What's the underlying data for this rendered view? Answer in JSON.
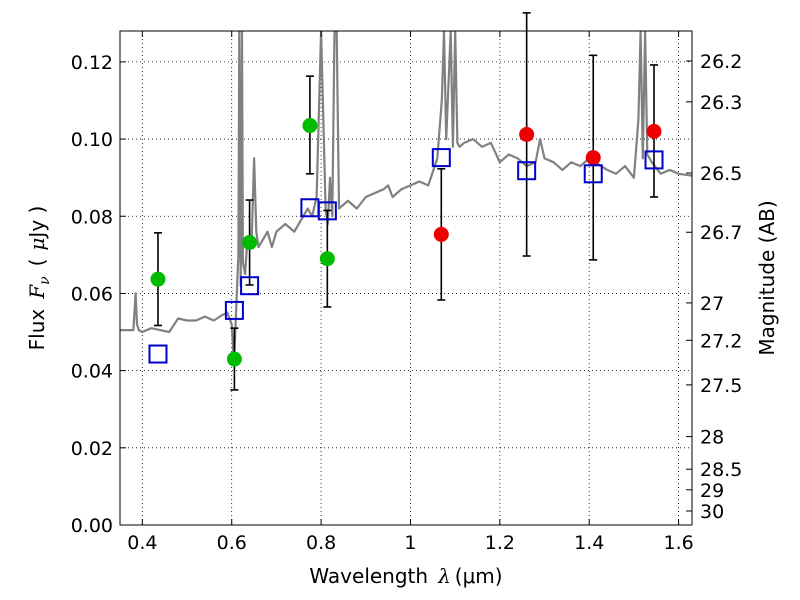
{
  "chart_data": {
    "type": "scatter",
    "title": "",
    "xlabel_prefix": "Wavelength",
    "xlabel_symbol": "λ",
    "xlabel_unit": "(μm)",
    "ylabel_prefix": "Flux",
    "ylabel_symbol": "F",
    "ylabel_subscript": "ν",
    "ylabel_unit_open": "(",
    "ylabel_unit_sym": "μ",
    "ylabel_unit_rest": "Jy )",
    "ylabel_right": "Magnitude (AB)",
    "xlim": [
      0.35,
      1.63
    ],
    "ylim": [
      0.0,
      0.128
    ],
    "grid": true,
    "x_ticks": [
      0.4,
      0.6,
      0.8,
      1.0,
      1.2,
      1.4,
      1.6
    ],
    "x_tick_labels": [
      "0.4",
      "0.6",
      "0.8",
      "1",
      "1.2",
      "1.4",
      "1.6"
    ],
    "y_ticks": [
      0.0,
      0.02,
      0.04,
      0.06,
      0.08,
      0.1,
      0.12
    ],
    "y_tick_labels": [
      "0.00",
      "0.02",
      "0.04",
      "0.06",
      "0.08",
      "0.10",
      "0.12"
    ],
    "mag_ticks": [
      26.2,
      26.3,
      26.5,
      26.7,
      27,
      27.2,
      27.5,
      28,
      28.5,
      29,
      30
    ],
    "mag_tick_labels": [
      "26.2",
      "26.3",
      "26.5",
      "26.7",
      "27",
      "27.2",
      "27.5",
      "28",
      "28.5",
      "29",
      "30"
    ],
    "colors": {
      "model": "#808080",
      "green": "#00bb00",
      "red": "#ee0000",
      "model_box": "#0000cc",
      "errorbar": "#000000"
    },
    "series": [
      {
        "marker": "circle",
        "color": "green",
        "points": [
          {
            "x": 0.435,
            "y": 0.0637,
            "err": [
              0.0517,
              0.0757
            ]
          },
          {
            "x": 0.606,
            "y": 0.043,
            "err": [
              0.035,
              0.051
            ]
          },
          {
            "x": 0.64,
            "y": 0.0732,
            "err": [
              0.0622,
              0.0842
            ]
          },
          {
            "x": 0.775,
            "y": 0.1035,
            "err": [
              0.091,
              0.1163
            ]
          },
          {
            "x": 0.814,
            "y": 0.069,
            "err": [
              0.0565,
              0.0815
            ]
          }
        ]
      },
      {
        "marker": "circle",
        "color": "red",
        "points": [
          {
            "x": 1.069,
            "y": 0.0753,
            "err": [
              0.0583,
              0.0923
            ]
          },
          {
            "x": 1.26,
            "y": 0.1012,
            "err": [
              0.0697,
              0.1327
            ]
          },
          {
            "x": 1.409,
            "y": 0.0952,
            "err": [
              0.0687,
              0.1217
            ]
          },
          {
            "x": 1.545,
            "y": 0.102,
            "err": [
              0.085,
              0.1192
            ]
          }
        ]
      },
      {
        "marker": "open-square",
        "color": "model_box",
        "points": [
          {
            "x": 0.435,
            "y": 0.0443
          },
          {
            "x": 0.606,
            "y": 0.0556
          },
          {
            "x": 0.64,
            "y": 0.062
          },
          {
            "x": 0.775,
            "y": 0.0822
          },
          {
            "x": 0.814,
            "y": 0.0814
          },
          {
            "x": 1.069,
            "y": 0.0952
          },
          {
            "x": 1.26,
            "y": 0.0918
          },
          {
            "x": 1.409,
            "y": 0.091
          },
          {
            "x": 1.545,
            "y": 0.0946
          }
        ]
      },
      {
        "marker": "line",
        "color": "model",
        "x": [
          0.35,
          0.38,
          0.385,
          0.388,
          0.392,
          0.4,
          0.42,
          0.44,
          0.46,
          0.48,
          0.5,
          0.52,
          0.54,
          0.56,
          0.58,
          0.59,
          0.6,
          0.605,
          0.61,
          0.615,
          0.617,
          0.62,
          0.623,
          0.625,
          0.63,
          0.635,
          0.645,
          0.65,
          0.655,
          0.66,
          0.67,
          0.68,
          0.69,
          0.7,
          0.72,
          0.74,
          0.76,
          0.77,
          0.78,
          0.79,
          0.8,
          0.81,
          0.815,
          0.82,
          0.825,
          0.83,
          0.835,
          0.84,
          0.86,
          0.88,
          0.9,
          0.92,
          0.94,
          0.95,
          0.96,
          0.98,
          1.0,
          1.02,
          1.04,
          1.06,
          1.07,
          1.075,
          1.08,
          1.09,
          1.095,
          1.1,
          1.105,
          1.11,
          1.12,
          1.14,
          1.16,
          1.18,
          1.2,
          1.22,
          1.24,
          1.26,
          1.28,
          1.29,
          1.3,
          1.32,
          1.34,
          1.36,
          1.38,
          1.4,
          1.42,
          1.44,
          1.46,
          1.48,
          1.5,
          1.51,
          1.515,
          1.52,
          1.525,
          1.53,
          1.54,
          1.56,
          1.58,
          1.6,
          1.63
        ],
        "y": [
          0.0505,
          0.0505,
          0.06,
          0.052,
          0.0505,
          0.05,
          0.051,
          0.0505,
          0.05,
          0.0535,
          0.053,
          0.053,
          0.054,
          0.053,
          0.0545,
          0.055,
          0.052,
          0.042,
          0.056,
          0.07,
          0.128,
          0.062,
          0.128,
          0.068,
          0.065,
          0.074,
          0.075,
          0.095,
          0.076,
          0.072,
          0.074,
          0.076,
          0.072,
          0.076,
          0.078,
          0.076,
          0.08,
          0.082,
          0.08,
          0.085,
          0.128,
          0.082,
          0.078,
          0.09,
          0.08,
          0.128,
          0.128,
          0.082,
          0.084,
          0.082,
          0.085,
          0.086,
          0.087,
          0.088,
          0.085,
          0.087,
          0.088,
          0.089,
          0.088,
          0.095,
          0.11,
          0.128,
          0.1,
          0.128,
          0.098,
          0.128,
          0.099,
          0.098,
          0.099,
          0.1,
          0.098,
          0.099,
          0.094,
          0.096,
          0.095,
          0.093,
          0.094,
          0.1,
          0.095,
          0.094,
          0.092,
          0.094,
          0.093,
          0.095,
          0.0935,
          0.092,
          0.091,
          0.093,
          0.09,
          0.105,
          0.128,
          0.095,
          0.128,
          0.096,
          0.094,
          0.091,
          0.092,
          0.091,
          0.0905
        ]
      }
    ]
  }
}
